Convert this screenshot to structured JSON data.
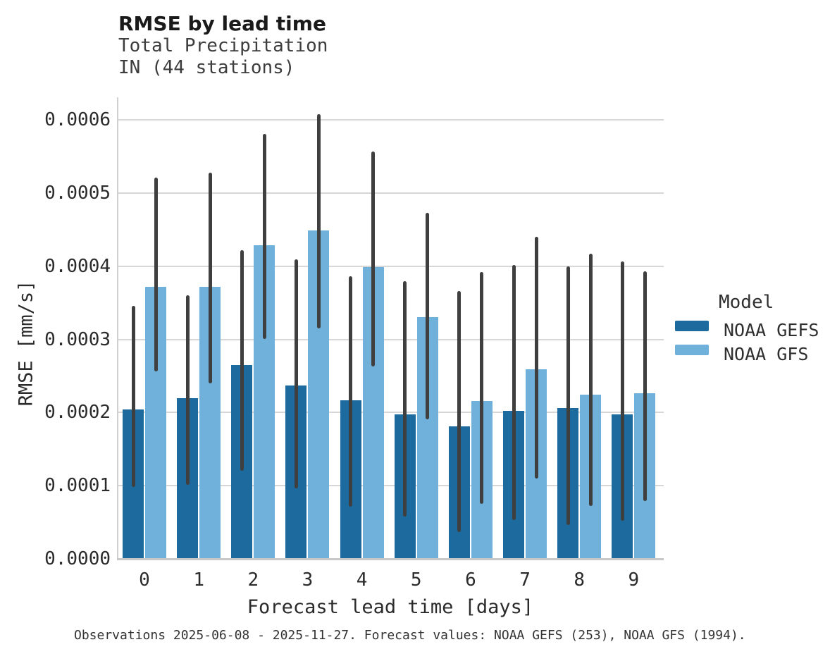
{
  "header": {
    "title": "RMSE by lead time",
    "subtitle_line1": "Total Precipitation",
    "subtitle_line2": "IN (44 stations)"
  },
  "caption": "Observations 2025-06-08 - 2025-11-27. Forecast values: NOAA GEFS (253), NOAA GFS (1994).",
  "legend": {
    "title": "Model",
    "entries": [
      {
        "label": "NOAA GEFS",
        "color": "#1d6b9e"
      },
      {
        "label": "NOAA GFS",
        "color": "#70b1dc"
      }
    ]
  },
  "chart_data": {
    "type": "bar",
    "title": "RMSE by lead time",
    "subtitle": [
      "Total Precipitation",
      "IN (44 stations)"
    ],
    "xlabel": "Forecast lead time [days]",
    "ylabel": "RMSE [mm/s]",
    "categories": [
      "0",
      "1",
      "2",
      "3",
      "4",
      "5",
      "6",
      "7",
      "8",
      "9"
    ],
    "ylim": [
      0,
      0.00063
    ],
    "yticks": [
      0.0,
      0.0001,
      0.0002,
      0.0003,
      0.0004,
      0.0005,
      0.0006
    ],
    "ytick_labels": [
      "0.0000",
      "0.0001",
      "0.0002",
      "0.0003",
      "0.0004",
      "0.0005",
      "0.0006"
    ],
    "grid": "horizontal",
    "legend_position": "right",
    "error_bar_color": "#3f3f3f",
    "series": [
      {
        "name": "NOAA GEFS",
        "color": "#1d6b9e",
        "values": [
          0.000204,
          0.00022,
          0.000265,
          0.000237,
          0.000217,
          0.000197,
          0.000181,
          0.000202,
          0.000206,
          0.000197
        ],
        "err_low": [
          9.8e-05,
          0.000101,
          0.00012,
          9.6e-05,
          7.1e-05,
          5.8e-05,
          3.7e-05,
          5.3e-05,
          4.6e-05,
          5.2e-05
        ],
        "err_high": [
          0.000346,
          0.00036,
          0.000422,
          0.000409,
          0.000386,
          0.000379,
          0.000366,
          0.000402,
          0.0004,
          0.000406
        ]
      },
      {
        "name": "NOAA GFS",
        "color": "#70b1dc",
        "values": [
          0.000372,
          0.000372,
          0.000429,
          0.000449,
          0.000399,
          0.00033,
          0.000216,
          0.000259,
          0.000224,
          0.000226
        ],
        "err_low": [
          0.000256,
          0.00024,
          0.0003,
          0.000315,
          0.000263,
          0.000191,
          7.5e-05,
          0.00011,
          7.2e-05,
          7.9e-05
        ],
        "err_high": [
          0.000521,
          0.000528,
          0.000581,
          0.000608,
          0.000557,
          0.000473,
          0.000392,
          0.00044,
          0.000417,
          0.000393
        ]
      }
    ]
  }
}
